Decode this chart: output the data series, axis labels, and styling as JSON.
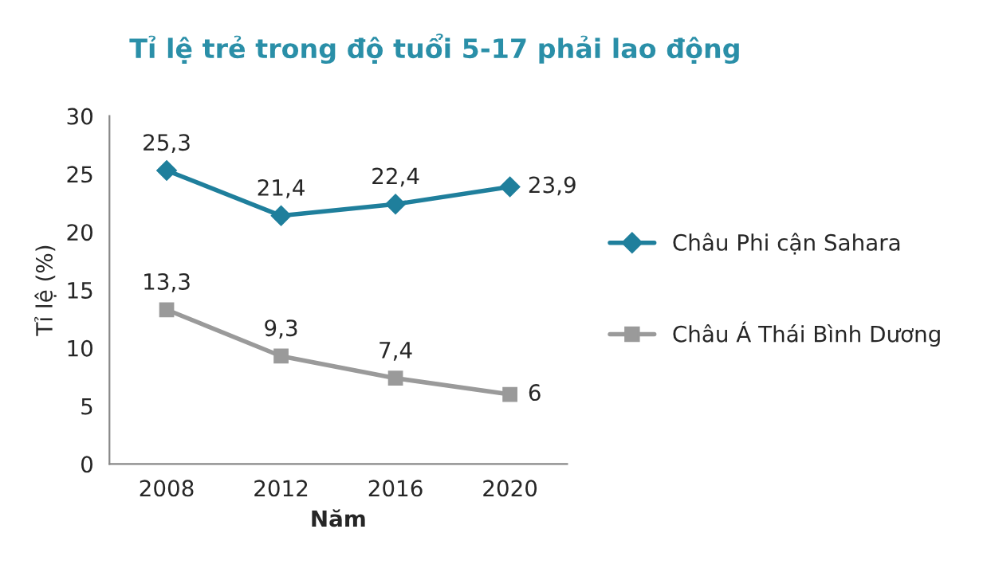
{
  "chart_data": {
    "type": "line",
    "title": "Tỉ lệ trẻ trong độ tuổi 5-17 phải lao động",
    "xlabel": "Năm",
    "ylabel": "Tỉ lệ (%)",
    "categories": [
      "2008",
      "2012",
      "2016",
      "2020"
    ],
    "series": [
      {
        "name": "Châu Phi cận Sahara",
        "color": "#1f7f9c",
        "marker": "diamond",
        "values": [
          25.3,
          21.4,
          22.4,
          23.9
        ],
        "value_labels": [
          "25,3",
          "21,4",
          "22,4",
          "23,9"
        ]
      },
      {
        "name": "Châu Á Thái Bình Dương",
        "color": "#9a9a9a",
        "marker": "square",
        "values": [
          13.3,
          9.3,
          7.4,
          6
        ],
        "value_labels": [
          "13,3",
          "9,3",
          "7,4",
          "6"
        ]
      }
    ],
    "ylim": [
      0,
      30
    ],
    "yticks": [
      0,
      5,
      10,
      15,
      20,
      25,
      30
    ],
    "grid": false,
    "legend": "right",
    "line_style": "solid"
  }
}
